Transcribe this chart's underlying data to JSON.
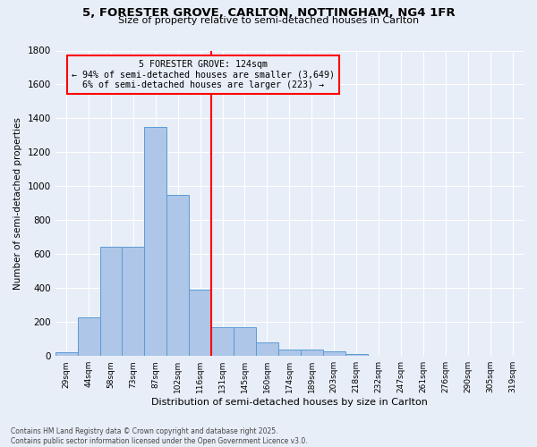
{
  "title_line1": "5, FORESTER GROVE, CARLTON, NOTTINGHAM, NG4 1FR",
  "title_line2": "Size of property relative to semi-detached houses in Carlton",
  "xlabel": "Distribution of semi-detached houses by size in Carlton",
  "ylabel": "Number of semi-detached properties",
  "footnote": "Contains HM Land Registry data © Crown copyright and database right 2025.\nContains public sector information licensed under the Open Government Licence v3.0.",
  "bin_labels": [
    "29sqm",
    "44sqm",
    "58sqm",
    "73sqm",
    "87sqm",
    "102sqm",
    "116sqm",
    "131sqm",
    "145sqm",
    "160sqm",
    "174sqm",
    "189sqm",
    "203sqm",
    "218sqm",
    "232sqm",
    "247sqm",
    "261sqm",
    "276sqm",
    "290sqm",
    "305sqm",
    "319sqm"
  ],
  "bar_values": [
    20,
    230,
    645,
    645,
    1350,
    950,
    390,
    170,
    170,
    80,
    40,
    40,
    28,
    10,
    0,
    0,
    0,
    0,
    0,
    0,
    0
  ],
  "bar_color": "#aec6e8",
  "bar_edge_color": "#5b9bd5",
  "property_bin_index": 7,
  "vline_color": "red",
  "annotation_title": "5 FORESTER GROVE: 124sqm",
  "annotation_line1": "← 94% of semi-detached houses are smaller (3,649)",
  "annotation_line2": "6% of semi-detached houses are larger (223) →",
  "annotation_box_color": "red",
  "ylim": [
    0,
    1800
  ],
  "yticks": [
    0,
    200,
    400,
    600,
    800,
    1000,
    1200,
    1400,
    1600,
    1800
  ],
  "background_color": "#e8eef8",
  "grid_color": "#ffffff"
}
